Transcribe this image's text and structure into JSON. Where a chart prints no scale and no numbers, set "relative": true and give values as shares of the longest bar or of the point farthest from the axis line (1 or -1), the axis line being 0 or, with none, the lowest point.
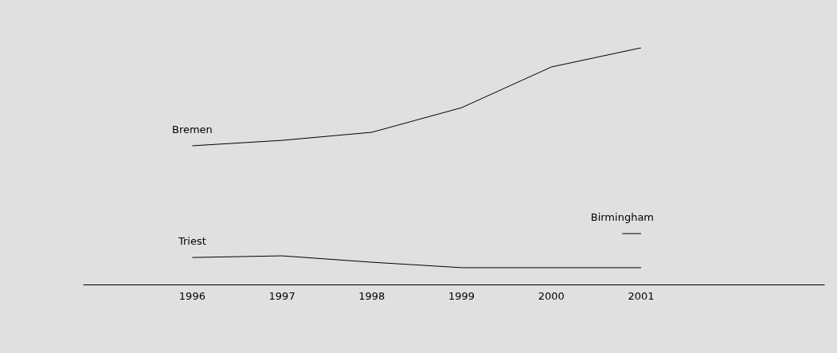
{
  "chart_data": {
    "type": "line",
    "relative": true,
    "x": [
      1996,
      1997,
      1998,
      1999,
      2000,
      2001
    ],
    "xlim": [
      1994.79,
      2003.04
    ],
    "xticks": [
      1996,
      1997,
      1998,
      1999,
      2000,
      2001
    ],
    "legend": false,
    "marker": "none",
    "line_style": "solid",
    "series": [
      {
        "name": "Bremen",
        "color": "#000000",
        "values": [
          0.586,
          0.609,
          0.643,
          0.747,
          0.919,
          1
        ]
      },
      {
        "name": "Birmingham",
        "color": "#000000",
        "x": [
          2000.79,
          2001
        ],
        "values": [
          0.215,
          0.215
        ]
      },
      {
        "name": "Triest",
        "color": "#000000",
        "values": [
          0.114,
          0.121,
          0.094,
          0.071,
          0.071,
          0.071
        ]
      }
    ]
  }
}
